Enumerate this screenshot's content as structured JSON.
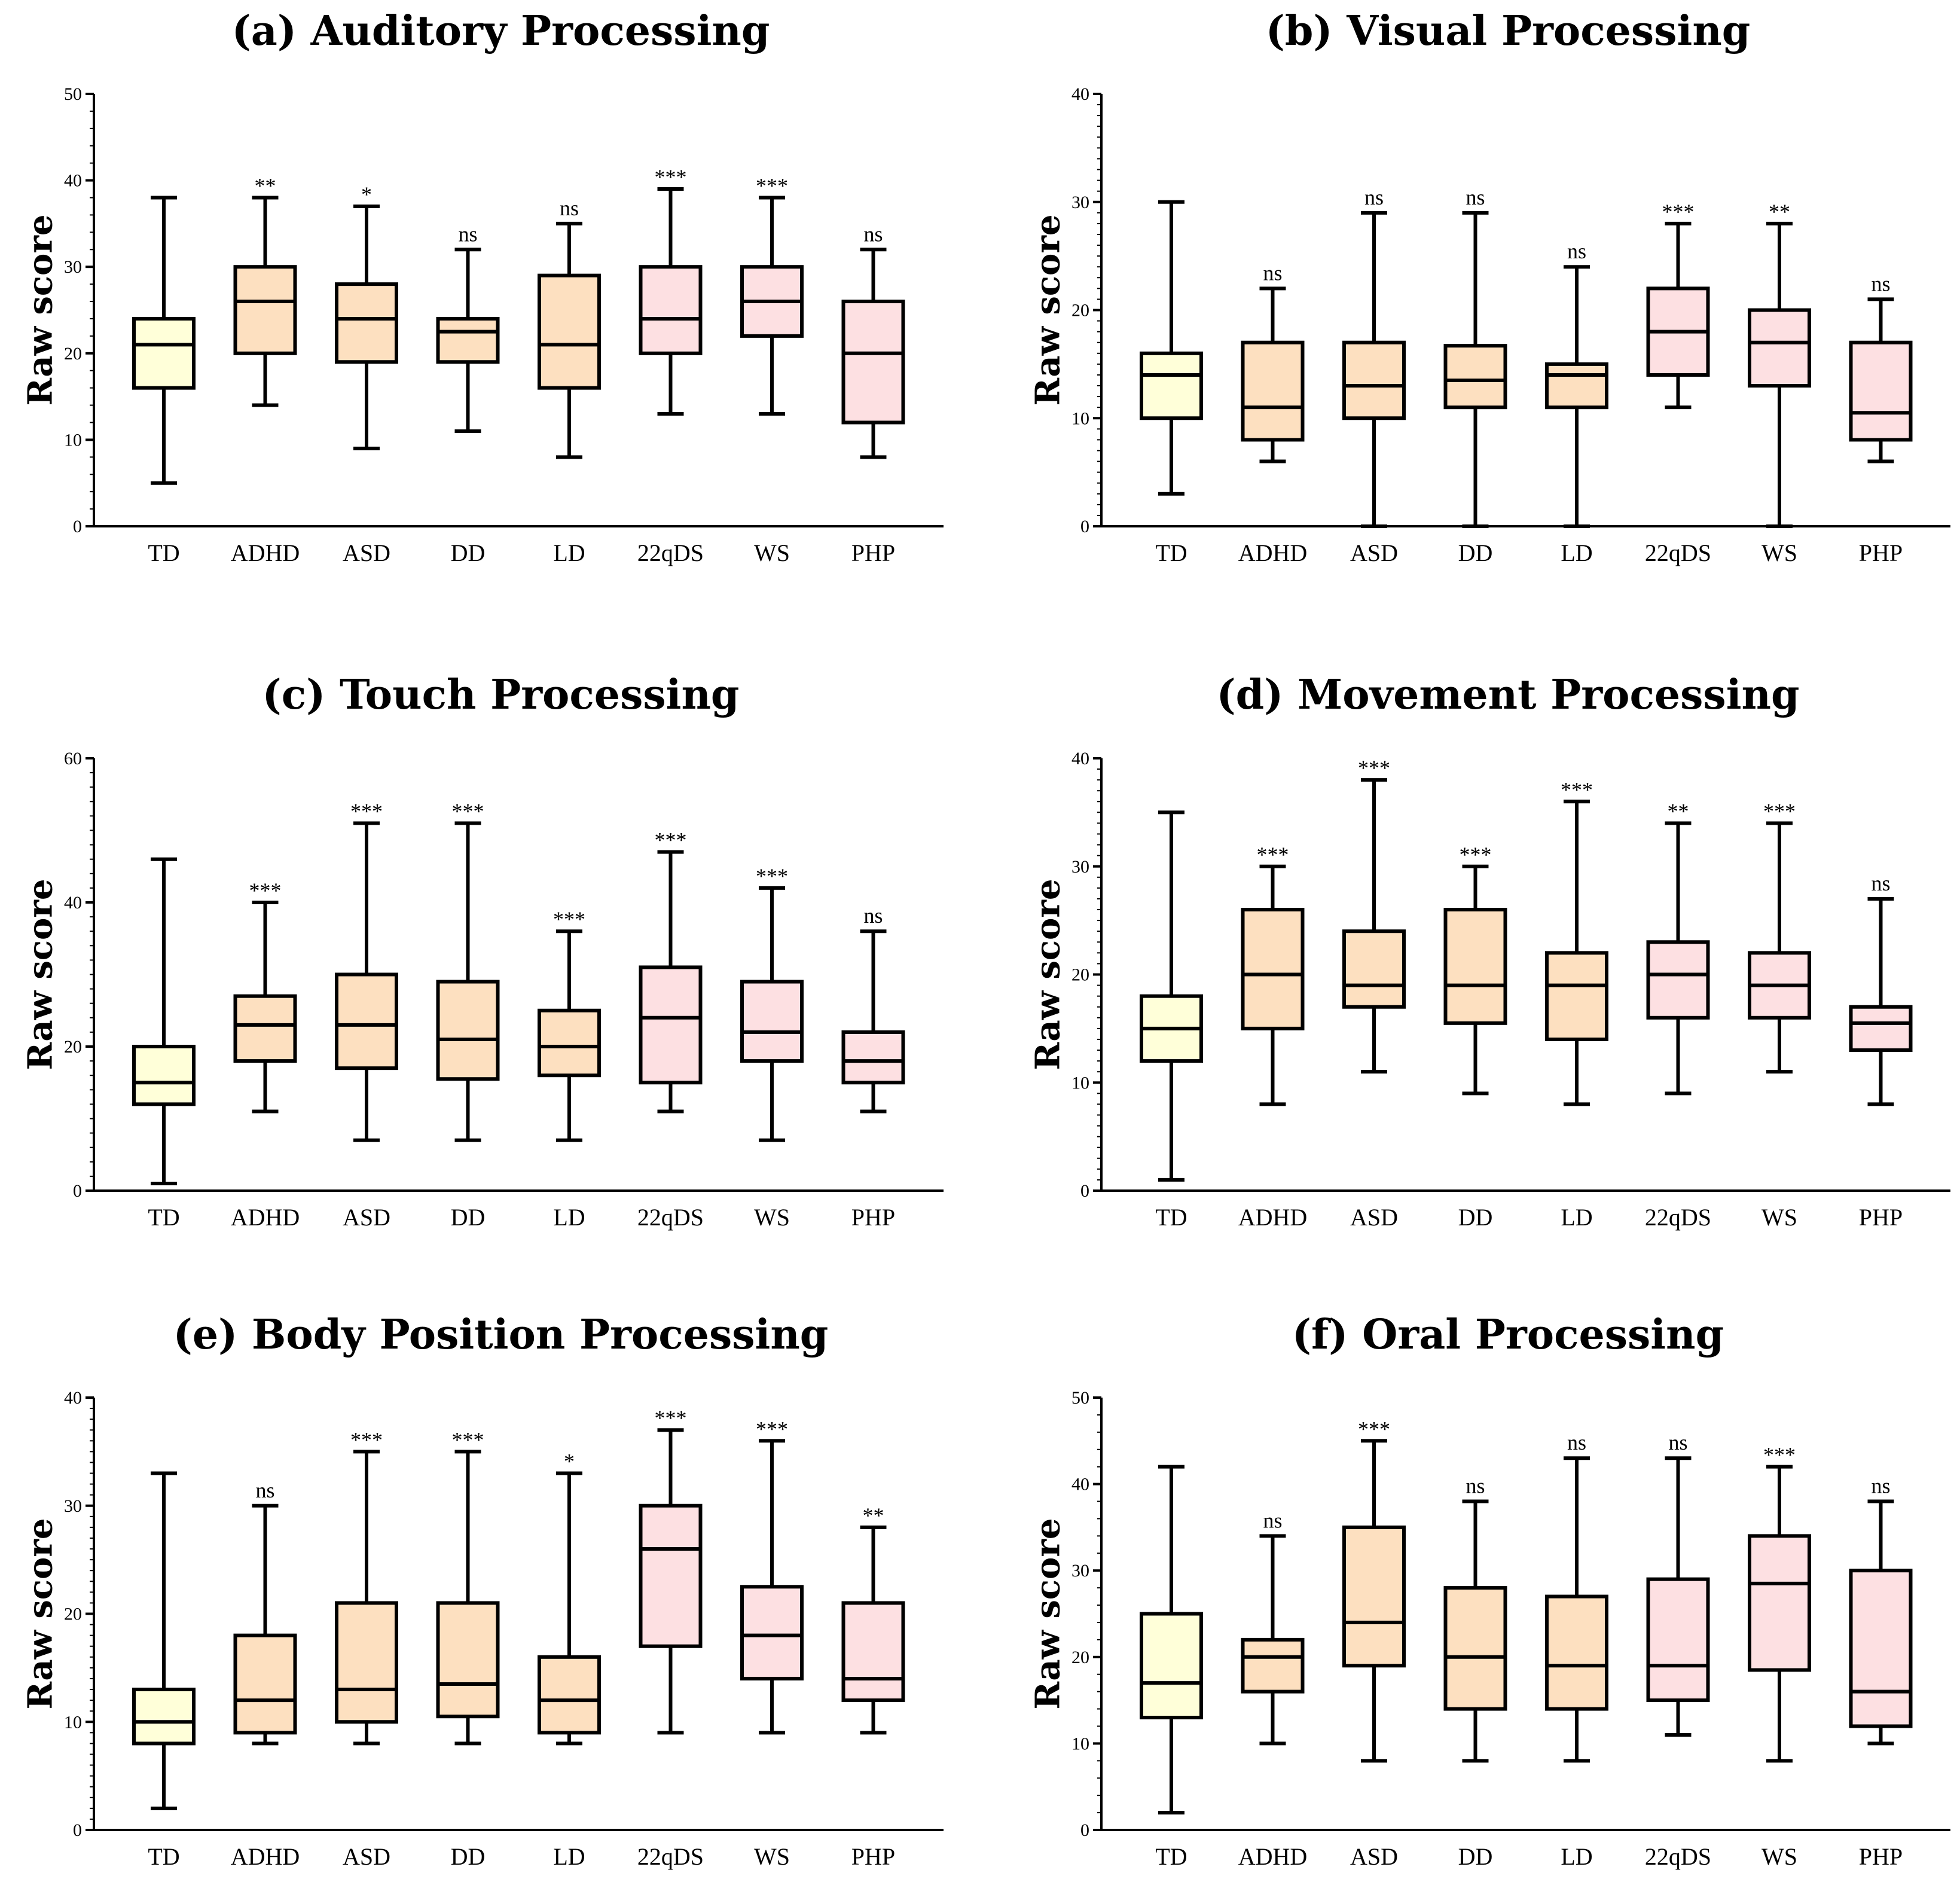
{
  "colors": {
    "TD": "#ffffd9",
    "ADHD": "#fde0c0",
    "ASD": "#fde0c0",
    "DD": "#fde0c0",
    "LD": "#fde0c0",
    "22qDS": "#fde0e2",
    "WS": "#fde0e2",
    "PHP": "#fde0e2"
  },
  "chart_data": [
    {
      "type": "box",
      "title": "(a) Auditory Processing",
      "ylabel": "Raw score",
      "ylim": [
        0,
        50
      ],
      "yticks": [
        0,
        10,
        20,
        30,
        40,
        50
      ],
      "minor_step": 2,
      "categories": [
        "TD",
        "ADHD",
        "ASD",
        "DD",
        "LD",
        "22qDS",
        "WS",
        "PHP"
      ],
      "min": [
        5,
        14,
        9,
        11,
        8,
        13,
        13,
        8
      ],
      "q1": [
        16,
        20,
        19,
        19,
        16,
        20,
        22,
        12
      ],
      "median": [
        21,
        26,
        24,
        22.5,
        21,
        24,
        26,
        20
      ],
      "q3": [
        24,
        30,
        28,
        24,
        29,
        30,
        30,
        26
      ],
      "max": [
        38,
        38,
        37,
        32,
        35,
        39,
        38,
        32
      ],
      "significance": [
        "",
        "**",
        "*",
        "ns",
        "ns",
        "***",
        "***",
        "ns"
      ]
    },
    {
      "type": "box",
      "title": "(b) Visual Processing",
      "ylabel": "Raw score",
      "ylim": [
        0,
        40
      ],
      "yticks": [
        0,
        10,
        20,
        30,
        40
      ],
      "minor_step": 1,
      "categories": [
        "TD",
        "ADHD",
        "ASD",
        "DD",
        "LD",
        "22qDS",
        "WS",
        "PHP"
      ],
      "min": [
        3,
        6,
        0,
        0,
        0,
        11,
        0,
        6
      ],
      "q1": [
        10,
        8,
        10,
        11,
        11,
        14,
        13,
        8
      ],
      "median": [
        14,
        11,
        13,
        13.5,
        14,
        18,
        17,
        10.5
      ],
      "q3": [
        16,
        17,
        17,
        16.7,
        15,
        22,
        20,
        17
      ],
      "max": [
        30,
        22,
        29,
        29,
        24,
        28,
        28,
        21
      ],
      "significance": [
        "",
        "ns",
        "ns",
        "ns",
        "ns",
        "***",
        "**",
        "ns"
      ]
    },
    {
      "type": "box",
      "title": "(c) Touch Processing",
      "ylabel": "Raw score",
      "ylim": [
        0,
        60
      ],
      "yticks": [
        0,
        20,
        40,
        60
      ],
      "minor_step": 2,
      "categories": [
        "TD",
        "ADHD",
        "ASD",
        "DD",
        "LD",
        "22qDS",
        "WS",
        "PHP"
      ],
      "min": [
        1,
        11,
        7,
        7,
        7,
        11,
        7,
        11
      ],
      "q1": [
        12,
        18,
        17,
        15.5,
        16,
        15,
        18,
        15
      ],
      "median": [
        15,
        23,
        23,
        21,
        20,
        24,
        22,
        18
      ],
      "q3": [
        20,
        27,
        30,
        29,
        25,
        31,
        29,
        22
      ],
      "max": [
        46,
        40,
        51,
        51,
        36,
        47,
        42,
        36
      ],
      "significance": [
        "",
        "***",
        "***",
        "***",
        "***",
        "***",
        "***",
        "ns"
      ]
    },
    {
      "type": "box",
      "title": "(d) Movement Processing",
      "ylabel": "Raw score",
      "ylim": [
        0,
        40
      ],
      "yticks": [
        0,
        10,
        20,
        30,
        40
      ],
      "minor_step": 1,
      "categories": [
        "TD",
        "ADHD",
        "ASD",
        "DD",
        "LD",
        "22qDS",
        "WS",
        "PHP"
      ],
      "min": [
        1,
        8,
        11,
        9,
        8,
        9,
        11,
        8
      ],
      "q1": [
        12,
        15,
        17,
        15.5,
        14,
        16,
        16,
        13
      ],
      "median": [
        15,
        20,
        19,
        19,
        19,
        20,
        19,
        15.5
      ],
      "q3": [
        18,
        26,
        24,
        26,
        22,
        23,
        22,
        17
      ],
      "max": [
        35,
        30,
        38,
        30,
        36,
        34,
        34,
        27
      ],
      "significance": [
        "",
        "***",
        "***",
        "***",
        "***",
        "**",
        "***",
        "ns"
      ]
    },
    {
      "type": "box",
      "title": "(e) Body Position Processing",
      "ylabel": "Raw score",
      "ylim": [
        0,
        40
      ],
      "yticks": [
        0,
        10,
        20,
        30,
        40
      ],
      "minor_step": 1,
      "categories": [
        "TD",
        "ADHD",
        "ASD",
        "DD",
        "LD",
        "22qDS",
        "WS",
        "PHP"
      ],
      "min": [
        2,
        8,
        8,
        8,
        8,
        9,
        9,
        9
      ],
      "q1": [
        8,
        9,
        10,
        10.5,
        9,
        17,
        14,
        12
      ],
      "median": [
        10,
        12,
        13,
        13.5,
        12,
        26,
        18,
        14
      ],
      "q3": [
        13,
        18,
        21,
        21,
        16,
        30,
        22.5,
        21
      ],
      "max": [
        33,
        30,
        35,
        35,
        33,
        37,
        36,
        28
      ],
      "significance": [
        "",
        "ns",
        "***",
        "***",
        "*",
        "***",
        "***",
        "**"
      ]
    },
    {
      "type": "box",
      "title": "(f) Oral Processing",
      "ylabel": "Raw score",
      "ylim": [
        0,
        50
      ],
      "yticks": [
        0,
        10,
        20,
        30,
        40,
        50
      ],
      "minor_step": 2,
      "categories": [
        "TD",
        "ADHD",
        "ASD",
        "DD",
        "LD",
        "22qDS",
        "WS",
        "PHP"
      ],
      "min": [
        2,
        10,
        8,
        8,
        8,
        11,
        8,
        10
      ],
      "q1": [
        13,
        16,
        19,
        14,
        14,
        15,
        18.5,
        12
      ],
      "median": [
        17,
        20,
        24,
        20,
        19,
        19,
        28.5,
        16
      ],
      "q3": [
        25,
        22,
        35,
        28,
        27,
        29,
        34,
        30
      ],
      "max": [
        42,
        34,
        45,
        38,
        43,
        43,
        42,
        38
      ],
      "significance": [
        "",
        "ns",
        "***",
        "ns",
        "ns",
        "ns",
        "***",
        "ns"
      ]
    }
  ]
}
